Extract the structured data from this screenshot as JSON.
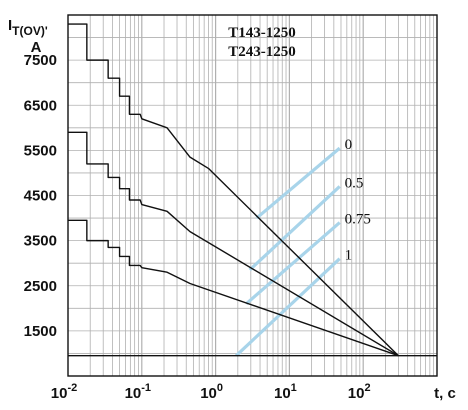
{
  "chart_data": {
    "type": "line",
    "title_lines": [
      "T143-1250",
      "T243-1250"
    ],
    "ylabel": {
      "main": "I",
      "sub": "T(OV)'",
      "unit": "A"
    },
    "xlabel": "t, c",
    "x_scale": "log",
    "xlim": [
      0.01,
      1000
    ],
    "ylim": [
      500,
      8500
    ],
    "x_ticks": [
      {
        "value": 0.01,
        "base": "10",
        "exp": "-2"
      },
      {
        "value": 0.1,
        "base": "10",
        "exp": "-1"
      },
      {
        "value": 1,
        "base": "10",
        "exp": "0"
      },
      {
        "value": 10,
        "base": "10",
        "exp": "1"
      },
      {
        "value": 100,
        "base": "10",
        "exp": "2"
      }
    ],
    "y_ticks": [
      1500,
      2500,
      3500,
      4500,
      5500,
      6500,
      7500
    ],
    "grid": true,
    "reference_level": 950,
    "colors": {
      "curve": "#111111",
      "family": "#a8d4ea",
      "grid": "#b0b0b0"
    },
    "series": [
      {
        "x": [
          0.01,
          0.018,
          0.018,
          0.035,
          0.035,
          0.05,
          0.05,
          0.068,
          0.068,
          0.095,
          0.1,
          0.22,
          0.45,
          0.8,
          300
        ],
        "y": [
          8300,
          8300,
          7500,
          7500,
          7100,
          7100,
          6700,
          6700,
          6300,
          6300,
          6200,
          6000,
          5350,
          5100,
          950
        ]
      },
      {
        "x": [
          0.01,
          0.018,
          0.018,
          0.035,
          0.035,
          0.05,
          0.05,
          0.068,
          0.068,
          0.095,
          0.1,
          0.22,
          0.45,
          300
        ],
        "y": [
          5900,
          5900,
          5200,
          5200,
          4900,
          4900,
          4650,
          4650,
          4400,
          4400,
          4300,
          4150,
          3700,
          950
        ]
      },
      {
        "x": [
          0.01,
          0.018,
          0.018,
          0.035,
          0.035,
          0.05,
          0.05,
          0.068,
          0.068,
          0.095,
          0.1,
          0.22,
          0.45,
          300
        ],
        "y": [
          3950,
          3950,
          3500,
          3500,
          3350,
          3350,
          3150,
          3150,
          2950,
          2950,
          2900,
          2800,
          2550,
          950
        ]
      }
    ],
    "family_lines": [
      {
        "label": "0",
        "x": [
          3.6,
          48
        ],
        "y": [
          4000,
          5550
        ]
      },
      {
        "label": "0.5",
        "x": [
          2.9,
          48
        ],
        "y": [
          2850,
          4700
        ]
      },
      {
        "label": "0.75",
        "x": [
          2.6,
          48
        ],
        "y": [
          2100,
          3900
        ]
      },
      {
        "label": "1",
        "x": [
          1.9,
          48
        ],
        "y": [
          950,
          3100
        ]
      }
    ]
  }
}
